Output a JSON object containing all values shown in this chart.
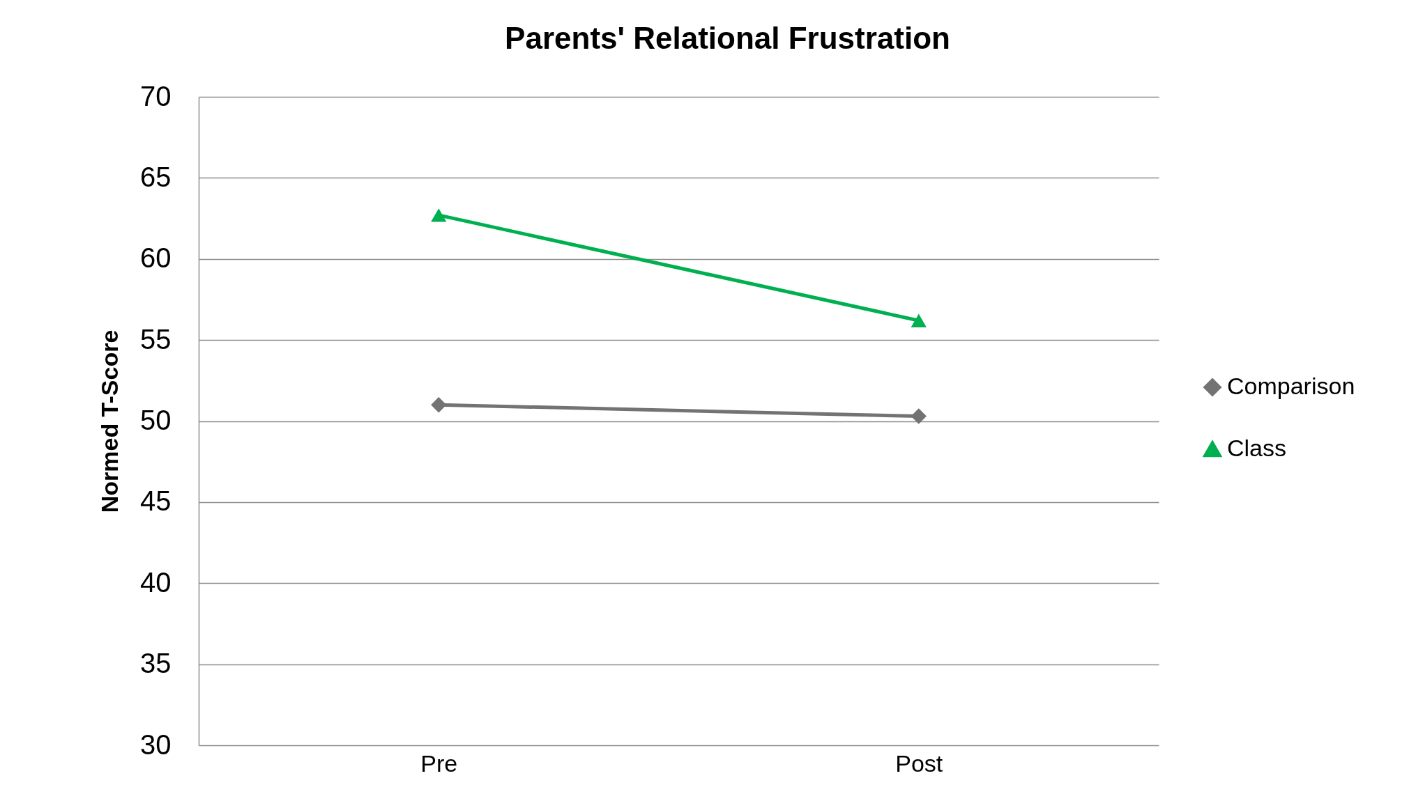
{
  "chart_data": {
    "type": "line",
    "title": "Parents' Relational Frustration",
    "ylabel": "Normed T-Score",
    "categories": [
      "Pre",
      "Post"
    ],
    "series": [
      {
        "name": "Comparison",
        "color": "#737373",
        "marker": "diamond",
        "values": [
          51.0,
          50.3
        ]
      },
      {
        "name": "Class",
        "color": "#00b050",
        "marker": "triangle",
        "values": [
          62.7,
          56.2
        ]
      }
    ],
    "ylim": [
      30,
      70
    ],
    "yticks": [
      30,
      35,
      40,
      45,
      50,
      55,
      60,
      65,
      70
    ],
    "grid": "y",
    "legend": "right",
    "line_style": "solid"
  }
}
